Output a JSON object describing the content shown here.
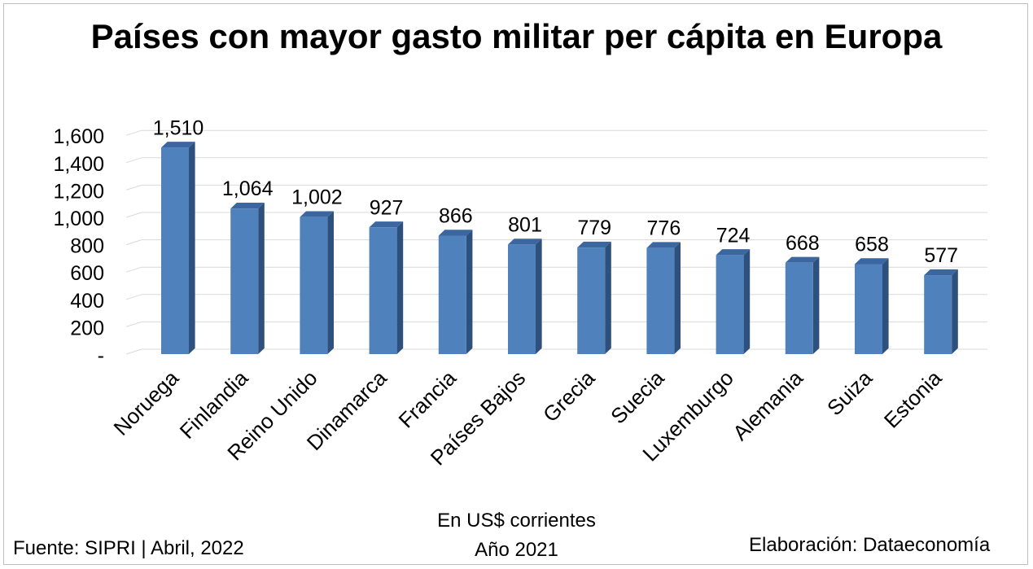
{
  "chart_data": {
    "type": "bar",
    "title": "Países con mayor gasto militar per cápita en Europa",
    "categories": [
      "Noruega",
      "Finlandia",
      "Reino Unido",
      "Dinamarca",
      "Francia",
      "Países Bajos",
      "Grecia",
      "Suecia",
      "Luxemburgo",
      "Alemania",
      "Suiza",
      "Estonia"
    ],
    "values": [
      1510,
      1064,
      1002,
      927,
      866,
      801,
      779,
      776,
      724,
      668,
      658,
      577
    ],
    "value_labels": [
      "1,510",
      "1,064",
      "1,002",
      "927",
      "866",
      "801",
      "779",
      "776",
      "724",
      "668",
      "658",
      "577"
    ],
    "y_ticks": [
      0,
      200,
      400,
      600,
      800,
      1000,
      1200,
      1400,
      1600
    ],
    "y_tick_labels": [
      "-",
      "200",
      "400",
      "600",
      "800",
      "1,000",
      "1,200",
      "1,400",
      "1,600"
    ],
    "ylim": [
      0,
      1600
    ],
    "grid": true,
    "legend": "none",
    "colors": {
      "bar_front": "#4f81bd",
      "bar_side": "#2e507c",
      "bar_top": "#3b66a0",
      "grid": "#d9d9d9"
    }
  },
  "footer": {
    "source": "Fuente: SIPRI | Abril, 2022",
    "unit": "En US$ corrientes",
    "year": "Año 2021",
    "credit": "Elaboración: Dataeconomía"
  }
}
